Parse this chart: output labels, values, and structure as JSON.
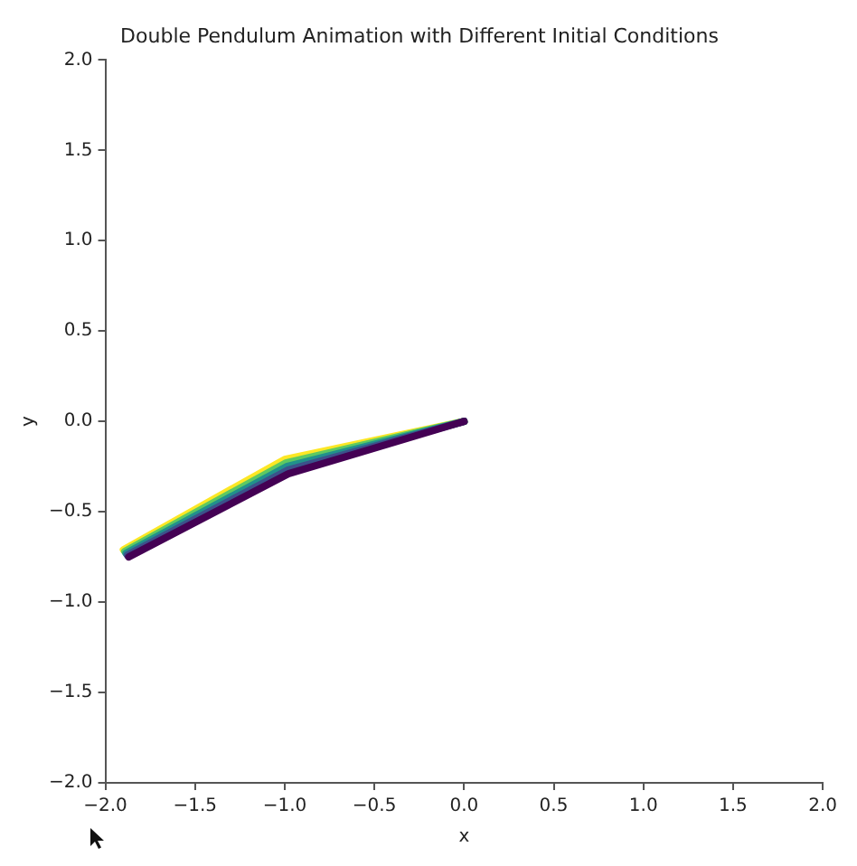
{
  "chart_data": {
    "type": "line",
    "title": "Double Pendulum Animation with Different Initial Conditions",
    "xlabel": "x",
    "ylabel": "y",
    "series": [
      {
        "color": "#440154",
        "x": [
          0,
          -0.98,
          -1.87
        ],
        "values": [
          0,
          -0.29,
          -0.75
        ]
      },
      {
        "color": "#3b528b",
        "x": [
          0,
          -0.985,
          -1.878
        ],
        "values": [
          0,
          -0.27,
          -0.74
        ]
      },
      {
        "color": "#21918c",
        "x": [
          0,
          -0.99,
          -1.885
        ],
        "values": [
          0,
          -0.25,
          -0.73
        ]
      },
      {
        "color": "#5ec962",
        "x": [
          0,
          -0.995,
          -1.892
        ],
        "values": [
          0,
          -0.23,
          -0.72
        ]
      },
      {
        "color": "#fde725",
        "x": [
          0,
          -1.0,
          -1.9
        ],
        "values": [
          0,
          -0.21,
          -0.71
        ]
      }
    ],
    "xlim": [
      -2,
      2
    ],
    "ylim": [
      -2,
      2
    ],
    "xticks": [
      {
        "value": -2,
        "label": "−2.0"
      },
      {
        "value": -1.5,
        "label": "−1.5"
      },
      {
        "value": -1,
        "label": "−1.0"
      },
      {
        "value": -0.5,
        "label": "−0.5"
      },
      {
        "value": 0,
        "label": "0.0"
      },
      {
        "value": 0.5,
        "label": "0.5"
      },
      {
        "value": 1,
        "label": "1.0"
      },
      {
        "value": 1.5,
        "label": "1.5"
      },
      {
        "value": 2,
        "label": "2.0"
      }
    ],
    "yticks": [
      {
        "value": -2,
        "label": "−2.0"
      },
      {
        "value": -1.5,
        "label": "−1.5"
      },
      {
        "value": -1,
        "label": "−1.0"
      },
      {
        "value": -0.5,
        "label": "−0.5"
      },
      {
        "value": 0,
        "label": "0.0"
      },
      {
        "value": 0.5,
        "label": "0.5"
      },
      {
        "value": 1,
        "label": "1.0"
      },
      {
        "value": 1.5,
        "label": "1.5"
      },
      {
        "value": 2,
        "label": "2.0"
      }
    ],
    "grid": false,
    "legend": false,
    "marker": "none",
    "line_style": "solid"
  }
}
